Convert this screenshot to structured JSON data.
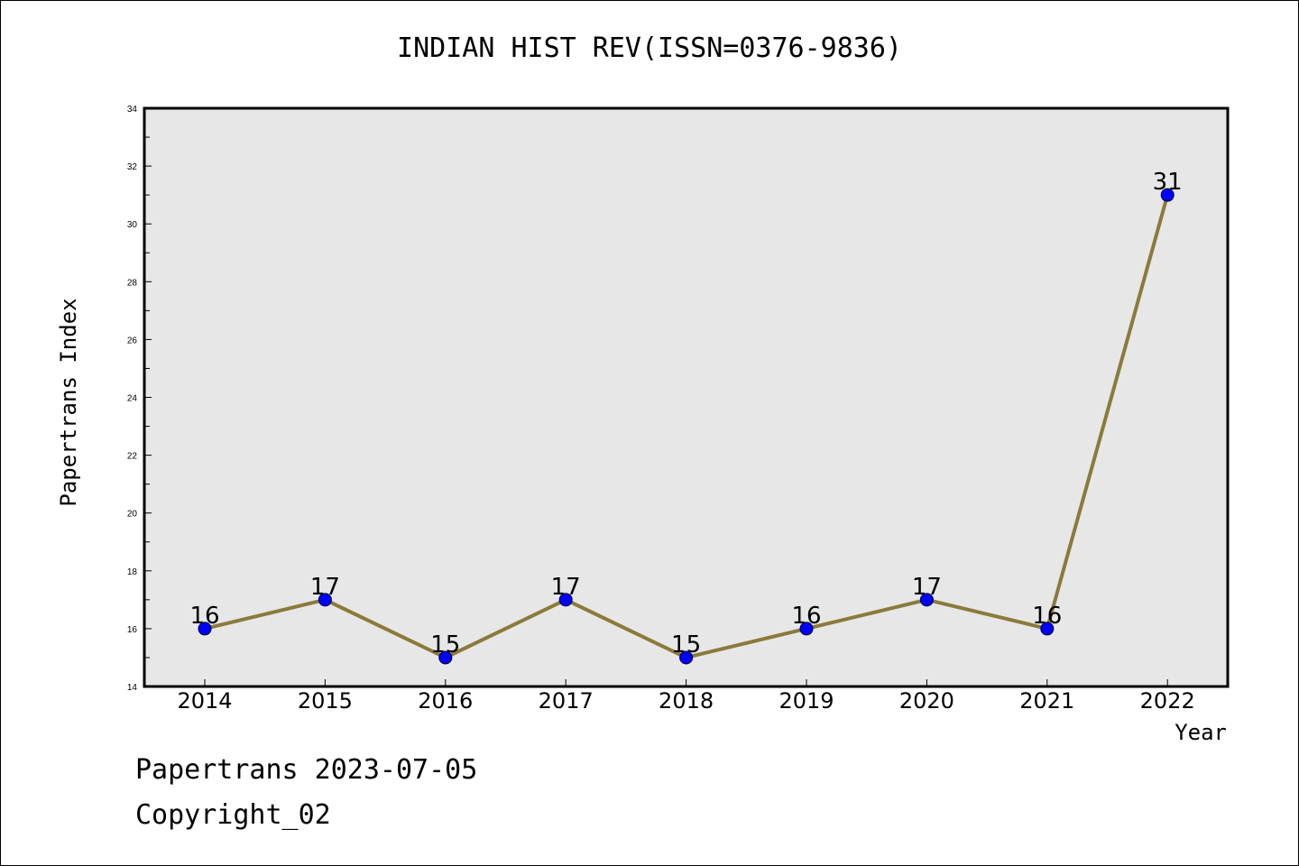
{
  "chart": {
    "title": "INDIAN HIST REV(ISSN=0376-9836)",
    "footer_date": "Papertrans 2023-07-05",
    "footer_copyright": "Copyright_02"
  },
  "colors": {
    "plot_background": "#e7e7e7",
    "line": "#8b7a3a",
    "marker": "#0000ff",
    "axis": "#000000"
  },
  "chart_data": {
    "type": "line",
    "title": "INDIAN HIST REV(ISSN=0376-9836)",
    "xlabel": "Year",
    "ylabel": "Papertrans Index",
    "categories": [
      "2014",
      "2015",
      "2016",
      "2017",
      "2018",
      "2019",
      "2020",
      "2021",
      "2022"
    ],
    "series": [
      {
        "values": [
          16,
          17,
          15,
          17,
          15,
          16,
          17,
          16,
          31
        ],
        "data_labels": [
          "16",
          "17",
          "15",
          "17",
          "15",
          "16",
          "17",
          "16",
          "31"
        ]
      }
    ],
    "ylim": [
      14,
      34
    ],
    "yticks": [
      "14",
      "16",
      "18",
      "20",
      "22",
      "24",
      "26",
      "28",
      "30",
      "32",
      "34"
    ],
    "grid": false,
    "legend": "none"
  }
}
